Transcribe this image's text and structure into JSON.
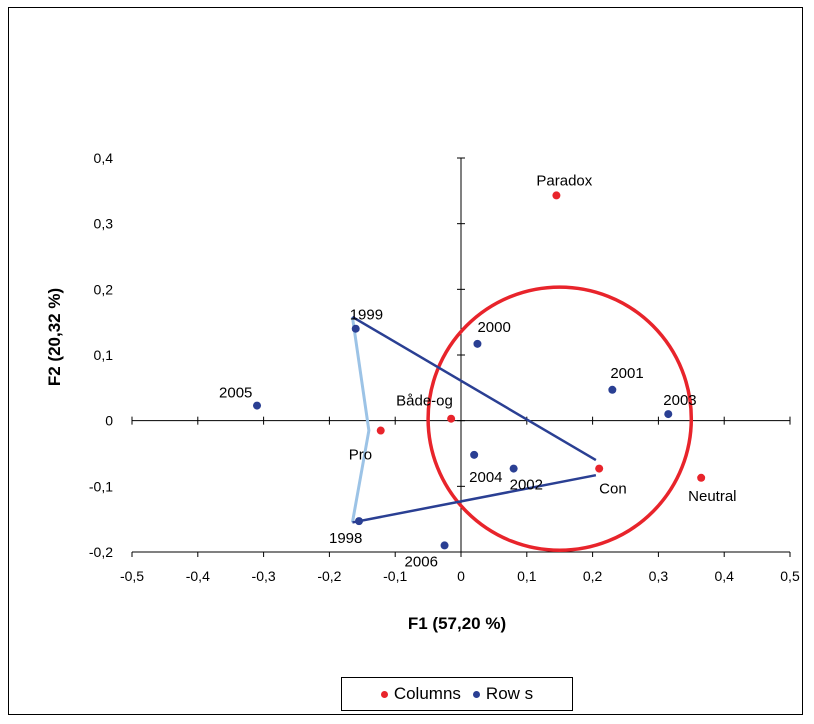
{
  "chart_data": {
    "type": "scatter",
    "xlabel": "F1 (57,20 %)",
    "ylabel": "F2 (20,32 %)",
    "xlim": [
      -0.5,
      0.5
    ],
    "ylim": [
      -0.2,
      0.4
    ],
    "x_ticks": [
      "-0,5",
      "-0,4",
      "-0,3",
      "-0,2",
      "-0,1",
      "0",
      "0,1",
      "0,2",
      "0,3",
      "0,4",
      "0,5"
    ],
    "y_ticks": [
      "-0,2",
      "-0,1",
      "0",
      "0,1",
      "0,2",
      "0,3",
      "0,4"
    ],
    "legend_position": "bottom",
    "series": [
      {
        "name": "Columns",
        "color": "#e8242b",
        "points": [
          {
            "label": "Paradox",
            "x": 0.145,
            "y": 0.343
          },
          {
            "label": "Både-og",
            "x": -0.015,
            "y": 0.003
          },
          {
            "label": "Pro",
            "x": -0.122,
            "y": -0.015
          },
          {
            "label": "Con",
            "x": 0.21,
            "y": -0.073
          },
          {
            "label": "Neutral",
            "x": 0.365,
            "y": -0.087
          }
        ]
      },
      {
        "name": "Row s",
        "color": "#2a3f93",
        "points": [
          {
            "label": "1999",
            "x": -0.16,
            "y": 0.14
          },
          {
            "label": "2000",
            "x": 0.025,
            "y": 0.117
          },
          {
            "label": "2005",
            "x": -0.31,
            "y": 0.023
          },
          {
            "label": "2001",
            "x": 0.23,
            "y": 0.047
          },
          {
            "label": "2003",
            "x": 0.315,
            "y": 0.01
          },
          {
            "label": "2004",
            "x": 0.02,
            "y": -0.052
          },
          {
            "label": "2002",
            "x": 0.08,
            "y": -0.073
          },
          {
            "label": "1998",
            "x": -0.155,
            "y": -0.153
          },
          {
            "label": "2006",
            "x": -0.025,
            "y": -0.19
          }
        ]
      }
    ],
    "annotations": {
      "dark_lines": [
        [
          [
            -0.165,
            0.158
          ],
          [
            0.205,
            -0.06
          ]
        ],
        [
          [
            -0.165,
            -0.155
          ],
          [
            0.205,
            -0.083
          ]
        ]
      ],
      "light_polyline": [
        [
          -0.165,
          0.158
        ],
        [
          -0.14,
          -0.015
        ],
        [
          -0.165,
          -0.155
        ]
      ],
      "circle": {
        "cx": 0.15,
        "cy": 0.003,
        "r": 0.2,
        "color": "#e8242b"
      }
    }
  },
  "colors": {
    "columns": "#e8242b",
    "rows": "#2a3f93",
    "light_line": "#9cc3e6",
    "dark_line": "#2a3f93"
  }
}
